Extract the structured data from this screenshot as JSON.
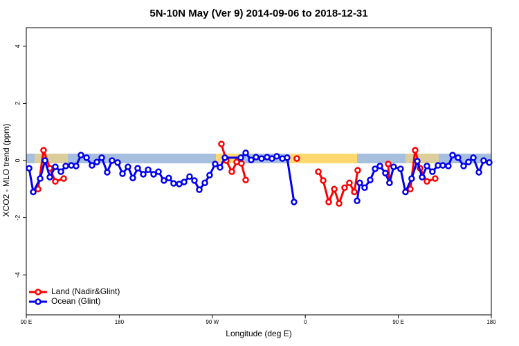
{
  "chart_data": {
    "type": "line",
    "title": "5N-10N May (Ver 9)   2014-09-06 to 2018-12-31",
    "x_label": "Longitude (deg E)",
    "y_label": "XCO2 - MLO trend (ppm)",
    "xlim": [
      90,
      540
    ],
    "xticks": [
      {
        "value": 90,
        "label": "90 E"
      },
      {
        "value": 180,
        "label": "180"
      },
      {
        "value": 270,
        "label": "90 W"
      },
      {
        "value": 360,
        "label": "0"
      },
      {
        "value": 450,
        "label": "90 E"
      },
      {
        "value": 540,
        "label": "180"
      }
    ],
    "ylim": [
      -5.4,
      4.65
    ],
    "yticks": [
      -4,
      -2,
      0,
      2,
      4
    ],
    "legend": "bottom-left",
    "series": [
      {
        "name": "Land (Nadir&Glint)",
        "color": "#ff0000",
        "x": [
          101.4,
          106.7,
          112.8,
          118.1,
          126.2,
          null,
          278.8,
          283.5,
          288.9,
          293.6,
          298.2,
          302.3,
          null,
          351.8,
          null,
          372.6,
          377.3,
          382.6,
          388.0,
          392.7,
          398.0,
          402.7,
          407.4,
          410.7,
          null,
          440.2,
          441.5,
          null,
          461.6,
          466.3,
          471.0,
          477.7,
          485.7
        ],
        "values": [
          -1.0,
          0.36,
          -0.27,
          -0.73,
          -0.63,
          null,
          0.58,
          0,
          -0.39,
          -0.05,
          -0.1,
          -0.68,
          null,
          0.07,
          null,
          -0.39,
          -0.7,
          -1.45,
          -1.0,
          -1.5,
          -0.95,
          -0.78,
          -1.1,
          -0.34,
          null,
          -0.12,
          -0.78,
          null,
          -1.0,
          0.36,
          -0.27,
          -0.73,
          -0.63
        ]
      },
      {
        "name": "Ocean (Glint)",
        "color": "#0000ee",
        "x": [
          92.7,
          96.7,
          103.4,
          108.1,
          112.8,
          118.1,
          123.5,
          128.2,
          133.5,
          138.2,
          142.9,
          148.3,
          153.6,
          158.3,
          163.0,
          168.3,
          173.0,
          178.4,
          183.1,
          188.4,
          193.1,
          197.8,
          203.2,
          207.9,
          213.2,
          217.9,
          223.2,
          227.9,
          232.6,
          238.0,
          242.7,
          248.0,
          252.7,
          257.4,
          262.8,
          267.4,
          272.8,
          277.5,
          282.2,
          297.6,
          302.3,
          307.6,
          312.3,
          317.7,
          323.0,
          327.7,
          332.4,
          337.8,
          342.4,
          349.1,
          null,
          410.1,
          412.7,
          417.4,
          422.8,
          427.5,
          432.2,
          437.5,
          441.5,
          445.5,
          452.2,
          456.9,
          462.9,
          468.3,
          473.0,
          477.7,
          483.0,
          488.4,
          493.1,
          498.4,
          502.5,
          507.8,
          513.2,
          517.9,
          522.6,
          528.0,
          532.6,
          538.0
        ],
        "values": [
          -0.27,
          -1.1,
          -0.63,
          0,
          -0.58,
          -0.22,
          -0.39,
          -0.19,
          -0.17,
          -0.19,
          0.19,
          0.1,
          -0.17,
          -0.05,
          0.1,
          -0.41,
          0,
          -0.07,
          -0.46,
          -0.22,
          -0.61,
          -0.27,
          -0.48,
          -0.32,
          -0.48,
          -0.39,
          -0.7,
          -0.61,
          -0.8,
          -0.82,
          -0.75,
          -0.56,
          -0.7,
          -1.02,
          -0.78,
          -0.51,
          -0.12,
          -0.24,
          0.1,
          0.1,
          0.27,
          0.02,
          0.12,
          0.07,
          0.12,
          0.07,
          0.15,
          0.07,
          0.1,
          -1.45,
          null,
          -1.41,
          -0.78,
          -0.95,
          -0.68,
          -0.29,
          -0.19,
          -0.44,
          -0.78,
          -0.22,
          -0.29,
          -1.1,
          -0.63,
          -0.02,
          -0.58,
          -0.19,
          -0.39,
          -0.17,
          -0.17,
          -0.19,
          0.19,
          0.1,
          -0.19,
          -0.05,
          0.1,
          -0.41,
          0,
          -0.07
        ]
      }
    ]
  }
}
